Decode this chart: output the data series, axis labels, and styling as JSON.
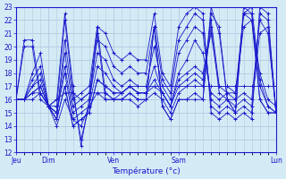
{
  "xlabel": "Température (°c)",
  "background_color": "#d4eaf5",
  "line_color": "#1a1acc",
  "grid_color": "#b0cce0",
  "ylim": [
    12,
    23
  ],
  "yticks": [
    12,
    13,
    14,
    15,
    16,
    17,
    18,
    19,
    20,
    21,
    22,
    23
  ],
  "day_labels": [
    "Jeu",
    "Dim",
    "Ven",
    "Sam",
    "Lun"
  ],
  "day_positions": [
    0,
    24,
    72,
    120,
    192
  ],
  "total_steps": 192,
  "series": [
    {
      "x": [
        0,
        6,
        12,
        18,
        24,
        30,
        36,
        42,
        48,
        54,
        60,
        66,
        72,
        78,
        84,
        90,
        96,
        102,
        108,
        114,
        120,
        126,
        132,
        138,
        144,
        150,
        156,
        162,
        168,
        174,
        180,
        186,
        192
      ],
      "y": [
        16.0,
        20.5,
        20.5,
        16.5,
        15.5,
        16.0,
        22.5,
        17.0,
        12.5,
        16.0,
        21.5,
        16.5,
        16.0,
        16.0,
        16.5,
        16.0,
        16.0,
        21.5,
        15.5,
        14.5,
        16.0,
        16.0,
        16.5,
        16.0,
        23.0,
        21.0,
        16.0,
        15.0,
        23.0,
        22.5,
        16.0,
        15.0,
        15.0
      ]
    },
    {
      "x": [
        0,
        6,
        12,
        18,
        24,
        30,
        36,
        42,
        48,
        54,
        60,
        66,
        72,
        78,
        84,
        90,
        96,
        102,
        108,
        114,
        120,
        126,
        132,
        138,
        144,
        150,
        156,
        162,
        168,
        174,
        180,
        186,
        192
      ],
      "y": [
        16.0,
        20.0,
        20.0,
        16.0,
        15.5,
        15.5,
        22.0,
        16.5,
        13.0,
        15.5,
        21.0,
        16.0,
        16.0,
        16.0,
        16.0,
        15.5,
        16.0,
        21.5,
        15.5,
        14.5,
        16.0,
        16.0,
        16.0,
        16.0,
        22.5,
        21.5,
        16.0,
        15.0,
        22.5,
        22.0,
        16.0,
        15.0,
        15.0
      ]
    },
    {
      "x": [
        0,
        6,
        12,
        18,
        24,
        30,
        36,
        42,
        48,
        54,
        60,
        66,
        72,
        78,
        84,
        90,
        96,
        102,
        108,
        114,
        120,
        126,
        132,
        138,
        144,
        150,
        156,
        162,
        168,
        174,
        180,
        186,
        192
      ],
      "y": [
        16.0,
        16.0,
        16.5,
        16.5,
        15.5,
        14.0,
        16.0,
        14.5,
        14.0,
        15.5,
        16.5,
        16.5,
        16.0,
        16.0,
        16.5,
        16.0,
        16.0,
        16.5,
        16.0,
        15.0,
        16.5,
        17.0,
        17.5,
        17.0,
        21.5,
        16.5,
        16.0,
        16.0,
        22.5,
        22.5,
        17.0,
        15.5,
        15.0
      ]
    },
    {
      "x": [
        0,
        6,
        12,
        18,
        24,
        30,
        36,
        42,
        48,
        54,
        60,
        66,
        72,
        78,
        84,
        90,
        96,
        102,
        108,
        114,
        120,
        126,
        132,
        138,
        144,
        150,
        156,
        162,
        168,
        174,
        180,
        186,
        192
      ],
      "y": [
        16.0,
        16.0,
        16.5,
        17.0,
        15.5,
        14.5,
        17.0,
        14.0,
        14.5,
        15.0,
        17.5,
        17.0,
        16.5,
        16.5,
        17.0,
        16.5,
        16.5,
        17.0,
        16.5,
        15.5,
        17.0,
        17.5,
        18.0,
        17.5,
        22.0,
        17.0,
        16.5,
        16.5,
        22.5,
        23.0,
        17.5,
        15.5,
        15.0
      ]
    },
    {
      "x": [
        0,
        6,
        12,
        18,
        24,
        30,
        36,
        42,
        48,
        54,
        60,
        66,
        72,
        78,
        84,
        90,
        96,
        102,
        108,
        114,
        120,
        126,
        132,
        138,
        144,
        150,
        156,
        162,
        168,
        174,
        180,
        186,
        192
      ],
      "y": [
        16.0,
        16.0,
        16.5,
        17.0,
        15.5,
        14.5,
        17.0,
        14.0,
        14.5,
        15.0,
        17.5,
        17.0,
        16.5,
        16.5,
        17.0,
        16.5,
        16.5,
        17.5,
        16.5,
        15.5,
        17.5,
        18.0,
        18.5,
        18.0,
        21.0,
        17.0,
        17.0,
        16.5,
        21.5,
        22.0,
        18.0,
        16.0,
        15.5
      ]
    },
    {
      "x": [
        0,
        6,
        12,
        18,
        24,
        30,
        36,
        42,
        48,
        54,
        60,
        66,
        72,
        78,
        84,
        90,
        96,
        102,
        108,
        114,
        120,
        126,
        132,
        138,
        144,
        150,
        156,
        162,
        168,
        174,
        180,
        186,
        192
      ],
      "y": [
        16.0,
        16.0,
        17.0,
        17.5,
        15.5,
        15.0,
        18.0,
        14.5,
        15.0,
        15.5,
        18.5,
        18.0,
        17.0,
        16.5,
        17.0,
        16.5,
        16.5,
        18.5,
        16.5,
        15.5,
        18.0,
        19.0,
        20.5,
        19.5,
        16.5,
        16.0,
        16.5,
        16.0,
        16.5,
        16.0,
        22.0,
        21.0,
        15.0
      ]
    },
    {
      "x": [
        0,
        6,
        12,
        18,
        24,
        30,
        36,
        42,
        48,
        54,
        60,
        66,
        72,
        78,
        84,
        90,
        96,
        102,
        108,
        114,
        120,
        126,
        132,
        138,
        144,
        150,
        156,
        162,
        168,
        174,
        180,
        186,
        192
      ],
      "y": [
        16.0,
        16.0,
        17.0,
        18.0,
        15.5,
        15.0,
        18.5,
        15.0,
        15.5,
        16.0,
        19.5,
        19.0,
        17.5,
        17.0,
        17.5,
        17.0,
        17.0,
        20.0,
        17.0,
        16.0,
        19.5,
        20.5,
        21.5,
        21.0,
        16.0,
        15.5,
        16.0,
        15.5,
        16.0,
        15.5,
        21.0,
        21.5,
        15.0
      ]
    },
    {
      "x": [
        0,
        6,
        12,
        18,
        24,
        30,
        36,
        42,
        48,
        54,
        60,
        66,
        72,
        78,
        84,
        90,
        96,
        102,
        108,
        114,
        120,
        126,
        132,
        138,
        144,
        150,
        156,
        162,
        168,
        174,
        180,
        186,
        192
      ],
      "y": [
        16.0,
        16.0,
        17.5,
        18.5,
        15.5,
        15.0,
        19.5,
        15.5,
        16.0,
        16.5,
        20.5,
        20.0,
        18.5,
        18.0,
        18.5,
        18.0,
        18.0,
        21.5,
        17.5,
        16.5,
        20.5,
        21.5,
        22.5,
        22.0,
        15.5,
        15.0,
        15.5,
        15.0,
        15.5,
        15.0,
        22.5,
        22.0,
        15.0
      ]
    },
    {
      "x": [
        0,
        6,
        12,
        18,
        24,
        30,
        36,
        42,
        48,
        54,
        60,
        66,
        72,
        78,
        84,
        90,
        96,
        102,
        108,
        114,
        120,
        126,
        132,
        138,
        144,
        150,
        156,
        162,
        168,
        174,
        180,
        186,
        192
      ],
      "y": [
        16.0,
        16.0,
        18.0,
        19.5,
        15.5,
        14.5,
        20.5,
        16.0,
        16.5,
        17.0,
        21.5,
        21.0,
        19.5,
        19.0,
        19.5,
        19.0,
        19.0,
        22.5,
        18.0,
        17.0,
        21.5,
        22.5,
        23.0,
        22.5,
        15.0,
        14.5,
        15.0,
        14.5,
        15.0,
        14.5,
        23.0,
        22.5,
        15.0
      ]
    },
    {
      "x": [
        0,
        6,
        12,
        18,
        24,
        30,
        36,
        42,
        48,
        54,
        60,
        66,
        72,
        78,
        84,
        90,
        96,
        102,
        108,
        114,
        120,
        126,
        132,
        138,
        144,
        150,
        156,
        162,
        168,
        174,
        180,
        186,
        192
      ],
      "y": [
        16.0,
        16.0,
        16.0,
        16.5,
        15.5,
        16.0,
        16.5,
        16.5,
        16.0,
        16.5,
        16.5,
        16.0,
        16.0,
        16.5,
        17.0,
        17.0,
        17.0,
        17.0,
        17.0,
        17.0,
        17.0,
        17.0,
        17.0,
        17.0,
        17.0,
        17.0,
        17.0,
        17.0,
        17.0,
        17.0,
        17.0,
        17.0,
        17.0
      ]
    }
  ]
}
